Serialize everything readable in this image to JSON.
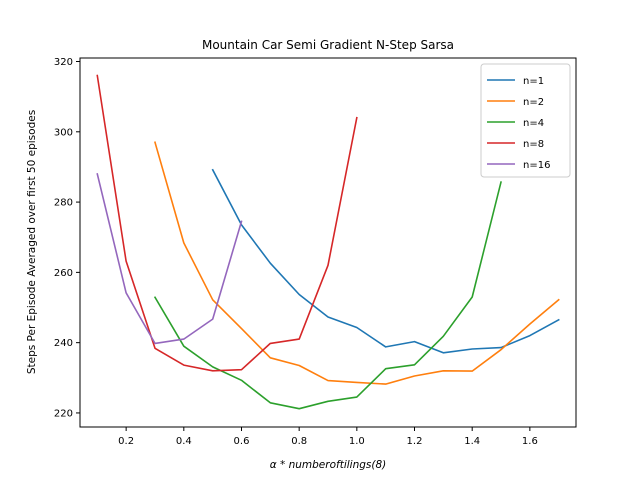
{
  "chart_data": {
    "type": "line",
    "title": "Mountain Car Semi Gradient N-Step Sarsa",
    "xlabel": "α * numberoftilings(8)",
    "ylabel": "Steps Per Episode Averaged over first 50 episodes",
    "xlim": [
      0.04,
      1.76
    ],
    "ylim": [
      216,
      321
    ],
    "xticks": [
      0.2,
      0.4,
      0.6,
      0.8,
      1.0,
      1.2,
      1.4,
      1.6
    ],
    "xtick_labels": [
      "0.2",
      "0.4",
      "0.6",
      "0.8",
      "1.0",
      "1.2",
      "1.4",
      "1.6"
    ],
    "yticks": [
      220,
      240,
      260,
      280,
      300,
      320
    ],
    "ytick_labels": [
      "220",
      "240",
      "260",
      "280",
      "300",
      "320"
    ],
    "grid": false,
    "legend_position": "top-right",
    "series": [
      {
        "name": "n=1",
        "color": "#1f77b4",
        "x": [
          0.5,
          0.6,
          0.7,
          0.8,
          0.9,
          1.0,
          1.1,
          1.2,
          1.3,
          1.4,
          1.5,
          1.6,
          1.7
        ],
        "y": [
          289.2,
          273.5,
          262.6,
          253.7,
          247.3,
          244.3,
          238.8,
          240.3,
          237.1,
          238.2,
          238.6,
          242.0,
          246.5
        ]
      },
      {
        "name": "n=2",
        "color": "#ff7f0e",
        "x": [
          0.3,
          0.4,
          0.5,
          0.6,
          0.7,
          0.8,
          0.9,
          1.0,
          1.1,
          1.2,
          1.3,
          1.4,
          1.5,
          1.6,
          1.7
        ],
        "y": [
          297.0,
          268.4,
          252.2,
          244.0,
          235.7,
          233.5,
          229.2,
          228.7,
          228.2,
          230.5,
          232.0,
          231.9,
          238.0,
          245.3,
          252.2
        ]
      },
      {
        "name": "n=4",
        "color": "#2ca02c",
        "x": [
          0.3,
          0.4,
          0.5,
          0.6,
          0.7,
          0.8,
          0.9,
          1.0,
          1.1,
          1.2,
          1.3,
          1.4,
          1.5
        ],
        "y": [
          252.9,
          239.0,
          233.1,
          229.3,
          222.9,
          221.2,
          223.3,
          224.5,
          232.6,
          233.7,
          241.8,
          253.0,
          285.7
        ]
      },
      {
        "name": "n=8",
        "color": "#d62728",
        "x": [
          0.1,
          0.2,
          0.3,
          0.4,
          0.5,
          0.6,
          0.7,
          0.8,
          0.9,
          1.0
        ],
        "y": [
          316.0,
          263.2,
          238.4,
          233.6,
          232.0,
          232.3,
          239.8,
          241.0,
          262.0,
          304.0
        ]
      },
      {
        "name": "n=16",
        "color": "#9467bd",
        "x": [
          0.1,
          0.2,
          0.3,
          0.4,
          0.5,
          0.6
        ],
        "y": [
          288.0,
          254.2,
          239.8,
          241.0,
          246.7,
          274.5
        ]
      }
    ]
  }
}
